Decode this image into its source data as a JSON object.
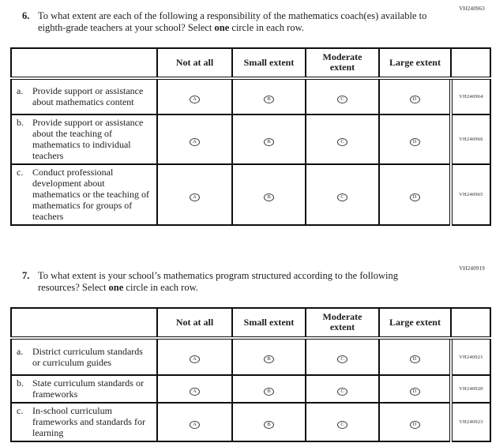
{
  "option_letters": [
    "A",
    "B",
    "C",
    "D"
  ],
  "questions": [
    {
      "code": "VH240963",
      "number": "6.",
      "text_pre": "To what extent are each of the following a responsibility of the mathematics coach(es) available to eighth-grade teachers at your school? Select ",
      "text_bold": "one",
      "text_post": " circle in each row.",
      "table": {
        "headers": [
          "Not at all",
          "Small extent",
          "Moderate extent",
          "Large extent"
        ],
        "rows": [
          {
            "letter": "a.",
            "label": "Provide support or assistance about mathematics content",
            "code": "VH240964"
          },
          {
            "letter": "b.",
            "label": "Provide support or assistance about the teaching of mathematics to individual teachers",
            "code": "VH240966"
          },
          {
            "letter": "c.",
            "label": "Conduct professional development about mathematics or the teaching of mathematics for groups of teachers",
            "code": "VH240965"
          }
        ]
      }
    },
    {
      "code": "VH240919",
      "number": "7.",
      "text_pre": "To what extent is your school’s mathematics program structured according to the following resources? Select ",
      "text_bold": "one",
      "text_post": " circle in each row.",
      "table": {
        "headers": [
          "Not at all",
          "Small extent",
          "Moderate extent",
          "Large extent"
        ],
        "rows": [
          {
            "letter": "a.",
            "label": "District curriculum standards or curriculum guides",
            "code": "VH240921"
          },
          {
            "letter": "b.",
            "label": "State curriculum standards or frameworks",
            "code": "VH240920"
          },
          {
            "letter": "c.",
            "label": "In-school curriculum frameworks and standards for learning",
            "code": "VH240923"
          }
        ]
      }
    }
  ]
}
